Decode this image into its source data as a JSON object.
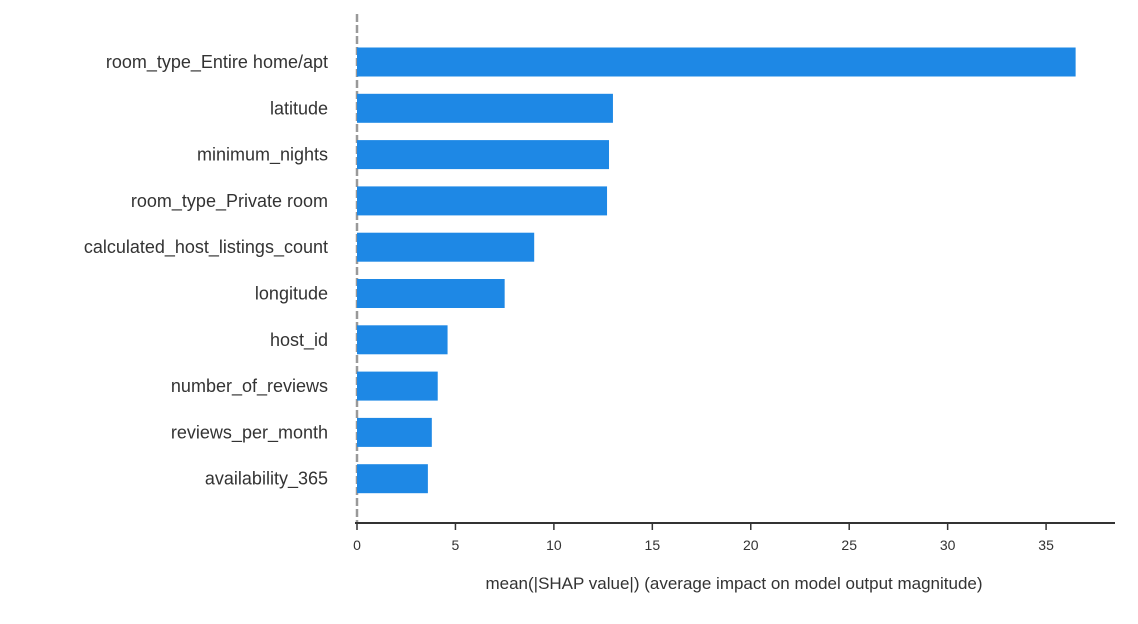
{
  "chart_data": {
    "type": "bar",
    "orientation": "horizontal",
    "categories": [
      "room_type_Entire home/apt",
      "latitude",
      "minimum_nights",
      "room_type_Private room",
      "calculated_host_listings_count",
      "longitude",
      "host_id",
      "number_of_reviews",
      "reviews_per_month",
      "availability_365"
    ],
    "values": [
      36.5,
      13.0,
      12.8,
      12.7,
      9.0,
      7.5,
      4.6,
      4.1,
      3.8,
      3.6
    ],
    "xlabel": "mean(|SHAP value|) (average impact on model output magnitude)",
    "ylabel": "",
    "xlim": [
      0,
      38.5
    ],
    "xticks": [
      "0",
      "5",
      "10",
      "15",
      "20",
      "25",
      "30",
      "35"
    ],
    "grid": false,
    "legend": "none",
    "colors": {
      "bar": "#1E88E5",
      "axis": "#333333",
      "zero_line": "#999999"
    }
  }
}
